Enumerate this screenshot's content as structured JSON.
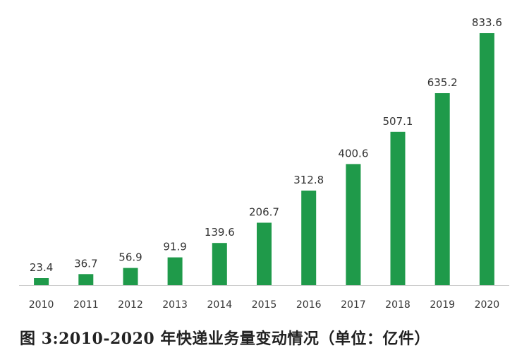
{
  "chart_data": {
    "type": "bar",
    "categories": [
      "2010",
      "2011",
      "2012",
      "2013",
      "2014",
      "2015",
      "2016",
      "2017",
      "2018",
      "2019",
      "2020"
    ],
    "values": [
      23.4,
      36.7,
      56.9,
      91.9,
      139.6,
      206.7,
      312.8,
      400.6,
      507.1,
      635.2,
      833.6
    ],
    "value_labels": [
      "23.4",
      "36.7",
      "56.9",
      "91.9",
      "139.6",
      "206.7",
      "312.8",
      "400.6",
      "507.1",
      "635.2",
      "833.6"
    ],
    "title": "",
    "xlabel": "",
    "ylabel": "",
    "ylim": [
      0,
      833.6
    ],
    "grid": false,
    "legend": "none",
    "bar_color": "#1f9a4a",
    "axis_color": "#cccccc"
  },
  "caption": "图 3:2010-2020 年快递业务量变动情况（单位：亿件）"
}
